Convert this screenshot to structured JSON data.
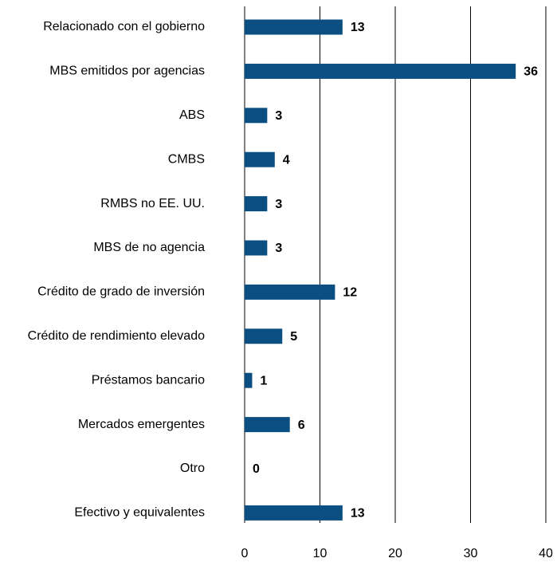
{
  "chart_data": {
    "type": "barh",
    "categories": [
      "Relacionado con el gobierno",
      "MBS emitidos por agencias",
      "ABS",
      "CMBS",
      "RMBS no EE. UU.",
      "MBS de no agencia",
      "Crédito de grado de inversión",
      "Crédito de rendimiento elevado",
      "Préstamos bancario",
      "Mercados emergentes",
      "Otro",
      "Efectivo y equivalentes"
    ],
    "values": [
      13,
      36,
      3,
      4,
      3,
      3,
      12,
      5,
      1,
      6,
      0,
      13
    ],
    "color": "#0b4f82",
    "xlim": [
      0,
      40
    ],
    "xticks": [
      0,
      10,
      20,
      30,
      40
    ],
    "grid": true
  }
}
